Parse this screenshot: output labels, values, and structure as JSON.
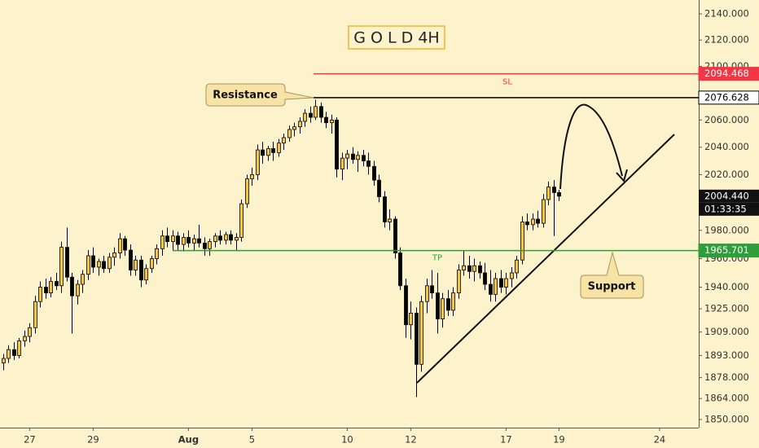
{
  "chart_data": {
    "type": "candlestick",
    "title": "G O L D 4H",
    "log": true,
    "ylim": [
      1844.6,
      2150.7
    ],
    "yticks": [
      {
        "value": 2140,
        "label": "2140.000"
      },
      {
        "value": 2120,
        "label": "2120.000"
      },
      {
        "value": 2100,
        "label": "2100.000"
      },
      {
        "value": 2060,
        "label": "2060.000"
      },
      {
        "value": 2040,
        "label": "2040.000"
      },
      {
        "value": 2020,
        "label": "2020.000"
      },
      {
        "value": 1980,
        "label": "1980.000"
      },
      {
        "value": 1960,
        "label": "1960.000"
      },
      {
        "value": 1940,
        "label": "1940.000"
      },
      {
        "value": 1925,
        "label": "1925.000"
      },
      {
        "value": 1909,
        "label": "1909.000"
      },
      {
        "value": 1893,
        "label": "1893.000"
      },
      {
        "value": 1878,
        "label": "1878.000"
      },
      {
        "value": 1864,
        "label": "1864.000"
      },
      {
        "value": 1850,
        "label": "1850.000"
      }
    ],
    "xlim": [
      -0.6,
      131.4
    ],
    "xticks": [
      {
        "value": 5,
        "label": "27"
      },
      {
        "value": 17,
        "label": "29"
      },
      {
        "value": 35,
        "label": "Aug"
      },
      {
        "value": 47,
        "label": "5"
      },
      {
        "value": 65,
        "label": "10"
      },
      {
        "value": 77,
        "label": "12"
      },
      {
        "value": 95,
        "label": "17"
      },
      {
        "value": 105,
        "label": "19"
      },
      {
        "value": 124,
        "label": "24"
      }
    ],
    "up_color": "#f5c542",
    "down_color": "#000000",
    "x": [
      0,
      1,
      2,
      3,
      4,
      5,
      6,
      7,
      8,
      9,
      10,
      11,
      12,
      13,
      14,
      15,
      16,
      17,
      18,
      19,
      20,
      21,
      22,
      23,
      24,
      25,
      26,
      27,
      28,
      29,
      30,
      31,
      32,
      33,
      34,
      35,
      36,
      37,
      38,
      39,
      40,
      41,
      42,
      43,
      44,
      45,
      46,
      47,
      48,
      49,
      50,
      51,
      52,
      53,
      54,
      55,
      56,
      57,
      58,
      59,
      60,
      61,
      62,
      63,
      64,
      65,
      66,
      67,
      68,
      69,
      70,
      71,
      72,
      73,
      74,
      75,
      76,
      77,
      78,
      79,
      80,
      81,
      82,
      83,
      84,
      85,
      86,
      87,
      88,
      89,
      90,
      91,
      92,
      93,
      94,
      95,
      96,
      97,
      98,
      99,
      100,
      101,
      102,
      103,
      104,
      105
    ],
    "open": [
      1888,
      1891,
      1897,
      1893,
      1903,
      1906,
      1912,
      1930,
      1940,
      1936,
      1944,
      1941,
      1968,
      1947,
      1934,
      1942,
      1949,
      1962,
      1954,
      1958,
      1953,
      1961,
      1964,
      1974,
      1966,
      1952,
      1959,
      1945,
      1953,
      1960,
      1967,
      1976,
      1972,
      1976,
      1970,
      1975,
      1971,
      1974,
      1971,
      1967,
      1972,
      1976,
      1973,
      1977,
      1973,
      1975,
      1999,
      2017,
      2020,
      2038,
      2034,
      2039,
      2036,
      2043,
      2047,
      2053,
      2055,
      2059,
      2065,
      2062,
      2070,
      2062,
      2058,
      2060,
      2024,
      2032,
      2035,
      2031,
      2034,
      2030,
      2026,
      2016,
      2004,
      1986,
      1988,
      1964,
      1941,
      1914,
      1922,
      1887,
      1930,
      1941,
      1936,
      1918,
      1932,
      1924,
      1936,
      1952,
      1955,
      1951,
      1955,
      1950,
      1942,
      1935,
      1946,
      1940,
      1946,
      1950,
      1959,
      1986,
      1984,
      1988,
      1985,
      2002,
      2011,
      2007
    ],
    "high": [
      1894,
      1900,
      1902,
      1905,
      1910,
      1915,
      1934,
      1944,
      1946,
      1947,
      1950,
      1972,
      1982,
      1950,
      1945,
      1952,
      1966,
      1968,
      1960,
      1962,
      1964,
      1968,
      1978,
      1976,
      1970,
      1962,
      1962,
      1956,
      1962,
      1970,
      1980,
      1982,
      1980,
      1979,
      1978,
      1980,
      1977,
      1984,
      1975,
      1974,
      1978,
      1980,
      1979,
      1980,
      1978,
      2002,
      2020,
      2025,
      2042,
      2044,
      2041,
      2044,
      2046,
      2050,
      2056,
      2058,
      2062,
      2068,
      2070,
      2075,
      2073,
      2066,
      2064,
      2062,
      2036,
      2038,
      2040,
      2037,
      2038,
      2036,
      2030,
      2020,
      2008,
      1995,
      1990,
      1968,
      1946,
      1930,
      1926,
      1934,
      1946,
      1952,
      1950,
      1936,
      1938,
      1940,
      1956,
      1966,
      1962,
      1960,
      1958,
      1957,
      1952,
      1950,
      1952,
      1950,
      1954,
      1962,
      1990,
      1992,
      1992,
      1994,
      2006,
      2015,
      2016,
      2009
    ],
    "low": [
      1883,
      1888,
      1890,
      1891,
      1899,
      1902,
      1908,
      1926,
      1932,
      1933,
      1938,
      1936,
      1944,
      1908,
      1928,
      1936,
      1945,
      1950,
      1948,
      1950,
      1950,
      1955,
      1960,
      1962,
      1948,
      1948,
      1940,
      1942,
      1950,
      1956,
      1962,
      1968,
      1966,
      1966,
      1965,
      1968,
      1966,
      1968,
      1962,
      1962,
      1968,
      1970,
      1970,
      1970,
      1966,
      1972,
      1996,
      2012,
      2016,
      2028,
      2030,
      2030,
      2033,
      2038,
      2044,
      2048,
      2050,
      2055,
      2058,
      2060,
      2058,
      2054,
      2050,
      2018,
      2016,
      2024,
      2028,
      2022,
      2026,
      2020,
      2012,
      2000,
      1982,
      1980,
      1960,
      1938,
      1905,
      1904,
      1865,
      1882,
      1922,
      1932,
      1908,
      1912,
      1920,
      1920,
      1932,
      1948,
      1946,
      1944,
      1946,
      1938,
      1930,
      1930,
      1936,
      1935,
      1940,
      1946,
      1956,
      1980,
      1980,
      1982,
      1982,
      1998,
      1976,
      2001
    ],
    "close": [
      1891,
      1897,
      1893,
      1903,
      1906,
      1912,
      1930,
      1940,
      1936,
      1944,
      1941,
      1968,
      1947,
      1934,
      1942,
      1949,
      1962,
      1954,
      1958,
      1953,
      1961,
      1964,
      1974,
      1966,
      1952,
      1959,
      1945,
      1953,
      1960,
      1967,
      1976,
      1972,
      1976,
      1970,
      1975,
      1971,
      1974,
      1971,
      1967,
      1972,
      1976,
      1973,
      1977,
      1973,
      1975,
      1999,
      2017,
      2020,
      2038,
      2034,
      2039,
      2036,
      2043,
      2047,
      2053,
      2055,
      2059,
      2065,
      2062,
      2070,
      2062,
      2058,
      2060,
      2024,
      2032,
      2035,
      2031,
      2034,
      2030,
      2026,
      2016,
      2004,
      1986,
      1988,
      1964,
      1941,
      1914,
      1922,
      1887,
      1930,
      1941,
      1936,
      1918,
      1932,
      1924,
      1936,
      1952,
      1955,
      1951,
      1955,
      1950,
      1942,
      1935,
      1946,
      1940,
      1946,
      1950,
      1959,
      1986,
      1984,
      1988,
      1985,
      2002,
      2011,
      2007,
      2004.44
    ],
    "levels": [
      {
        "name": "SL",
        "value": 2094.468,
        "color": "#f23645"
      },
      {
        "value": 2076.628,
        "color": "#000000"
      },
      {
        "name": "TP",
        "value": 1965.701,
        "color": "#2e9e3a"
      }
    ],
    "last_price": {
      "value": 2004.44,
      "label": "2004.440",
      "countdown": "01:33:35"
    },
    "annotations": [
      "Resistance",
      "Support"
    ]
  }
}
